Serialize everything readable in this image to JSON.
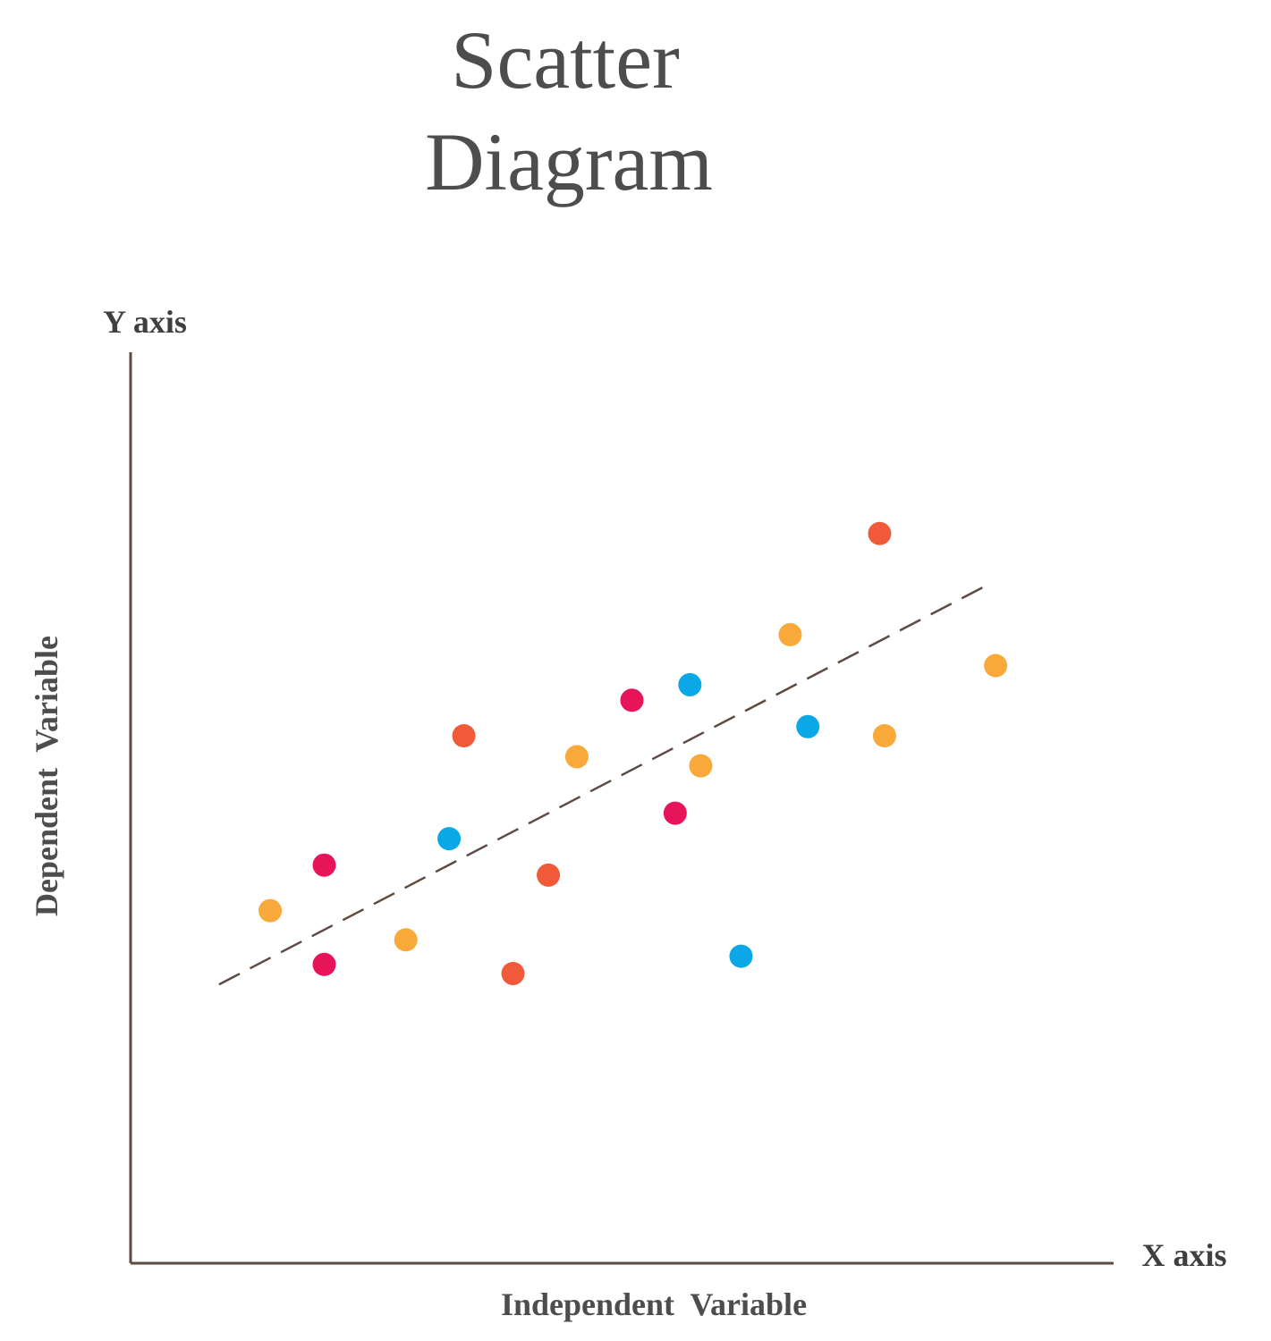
{
  "chart_data": {
    "type": "scatter",
    "title": [
      "Scatter",
      "Diagram"
    ],
    "y_axis_caption": "Y axis",
    "x_axis_caption": "X axis",
    "xlabel": "Independent  Variable",
    "ylabel": "Dependent  Variable",
    "xlim": [
      0,
      100
    ],
    "ylim": [
      0,
      100
    ],
    "grid": false,
    "colors": {
      "orange": "#f9a83a",
      "magenta": "#e8145a",
      "red_orange": "#f05a38",
      "blue": "#0aa8e6",
      "axis": "#5d4a42",
      "trend": "#5d4a42"
    },
    "points": [
      {
        "x": 14.2,
        "y": 38.7,
        "color": "orange"
      },
      {
        "x": 19.7,
        "y": 43.7,
        "color": "magenta"
      },
      {
        "x": 19.7,
        "y": 32.8,
        "color": "magenta"
      },
      {
        "x": 28.0,
        "y": 35.5,
        "color": "orange"
      },
      {
        "x": 32.4,
        "y": 46.6,
        "color": "blue"
      },
      {
        "x": 33.9,
        "y": 57.9,
        "color": "red_orange"
      },
      {
        "x": 38.9,
        "y": 31.8,
        "color": "red_orange"
      },
      {
        "x": 42.5,
        "y": 42.6,
        "color": "red_orange"
      },
      {
        "x": 45.4,
        "y": 55.6,
        "color": "orange"
      },
      {
        "x": 51.0,
        "y": 61.8,
        "color": "magenta"
      },
      {
        "x": 55.4,
        "y": 49.4,
        "color": "magenta"
      },
      {
        "x": 56.9,
        "y": 63.5,
        "color": "blue"
      },
      {
        "x": 58.0,
        "y": 54.6,
        "color": "orange"
      },
      {
        "x": 62.1,
        "y": 33.7,
        "color": "blue"
      },
      {
        "x": 67.1,
        "y": 69.0,
        "color": "orange"
      },
      {
        "x": 68.9,
        "y": 58.9,
        "color": "blue"
      },
      {
        "x": 76.2,
        "y": 80.1,
        "color": "red_orange"
      },
      {
        "x": 76.7,
        "y": 57.9,
        "color": "orange"
      },
      {
        "x": 88.0,
        "y": 65.6,
        "color": "orange"
      }
    ],
    "trendline": {
      "x1": 9.0,
      "y1": 30.6,
      "x2": 87.6,
      "y2": 74.7,
      "style": "dashed"
    }
  }
}
